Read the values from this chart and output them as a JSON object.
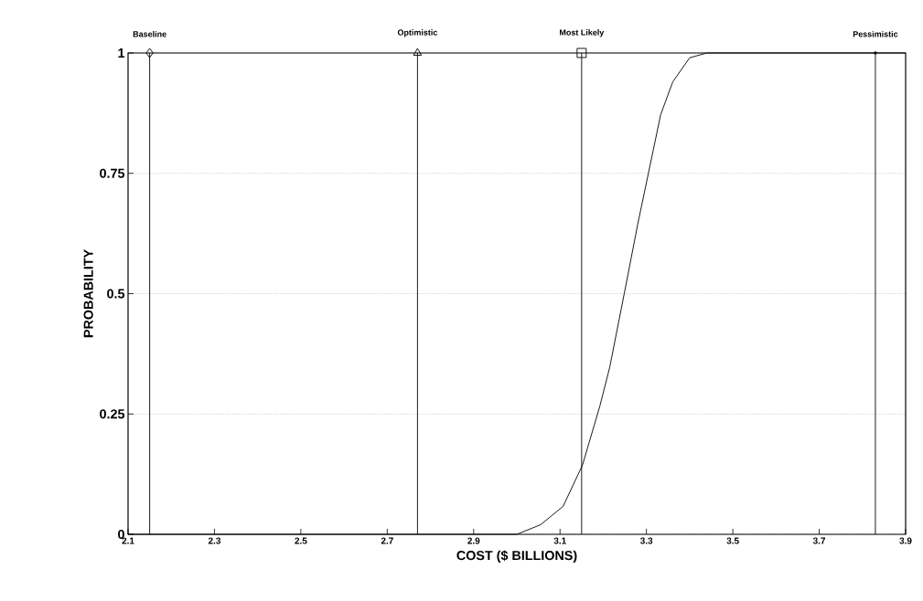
{
  "chart_data": {
    "type": "line",
    "xlabel": "COST ($ BILLIONS)",
    "ylabel": "PROBABILITY",
    "xlim": [
      2.1,
      3.9
    ],
    "xticks": [
      2.1,
      2.3,
      2.5,
      2.7,
      2.9,
      3.1,
      3.3,
      3.5,
      3.7,
      3.9
    ],
    "ylim": [
      0,
      1
    ],
    "yticks": [
      0,
      0.25,
      0.5,
      0.75,
      1
    ],
    "grid": "y",
    "series": [
      {
        "color": "#000000",
        "marker": "none",
        "x": [
          2.1,
          3.0,
          3.055,
          3.107,
          3.152,
          3.192,
          3.215,
          3.253,
          3.28,
          3.308,
          3.333,
          3.361,
          3.4,
          3.44,
          3.9
        ],
        "values": [
          0,
          0,
          0.02,
          0.058,
          0.144,
          0.266,
          0.347,
          0.52,
          0.645,
          0.765,
          0.872,
          0.94,
          0.99,
          1,
          1
        ]
      },
      {
        "type": "scatter",
        "color": "#000000",
        "marker": "diamond",
        "x": [
          2.15
        ],
        "values": [
          1
        ]
      },
      {
        "type": "scatter",
        "color": "#000000",
        "marker": "triangle",
        "x": [
          2.77
        ],
        "values": [
          1
        ]
      },
      {
        "type": "scatter",
        "color": "#000000",
        "marker": "square",
        "x": [
          3.15
        ],
        "values": [
          1
        ]
      },
      {
        "type": "scatter",
        "color": "#000000",
        "marker": "circle",
        "x": [
          3.83
        ],
        "values": [
          1
        ]
      }
    ],
    "ref_lines": [
      {
        "axis": "x",
        "value": 2.15,
        "label": "Baseline"
      },
      {
        "axis": "x",
        "value": 2.77,
        "label": "Optimistic"
      },
      {
        "axis": "x",
        "value": 3.15,
        "label": "Most Likely"
      },
      {
        "axis": "x",
        "value": 3.83,
        "label": "Pessimistic"
      }
    ]
  }
}
